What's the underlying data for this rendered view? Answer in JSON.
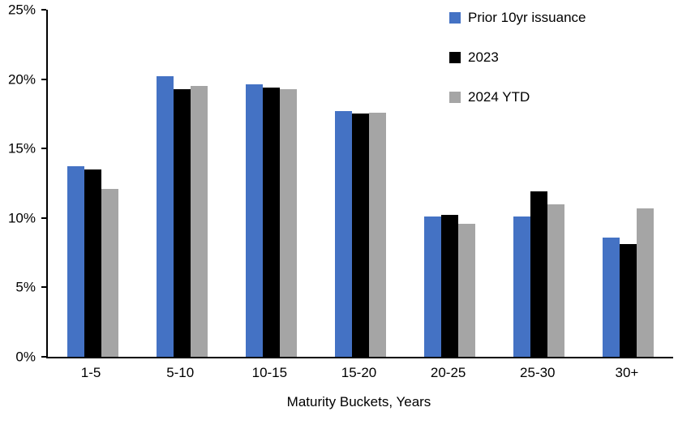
{
  "chart_data": {
    "type": "bar",
    "title": "",
    "xlabel": "Maturity Buckets, Years",
    "ylabel": "",
    "ylim": [
      0,
      25
    ],
    "ytick_step": 5,
    "ytick_labels": [
      "0%",
      "5%",
      "10%",
      "15%",
      "20%",
      "25%"
    ],
    "grid": false,
    "legend_position": "top-right",
    "categories": [
      "1-5",
      "5-10",
      "10-15",
      "15-20",
      "20-25",
      "25-30",
      "30+"
    ],
    "series": [
      {
        "name": "Prior 10yr issuance",
        "color": "#4472C4",
        "values": [
          13.7,
          20.2,
          19.6,
          17.7,
          10.1,
          10.1,
          8.6
        ]
      },
      {
        "name": "2023",
        "color": "#000000",
        "values": [
          13.5,
          19.3,
          19.4,
          17.5,
          10.2,
          11.9,
          8.1
        ]
      },
      {
        "name": "2024 YTD",
        "color": "#A5A5A5",
        "values": [
          12.1,
          19.5,
          19.3,
          17.6,
          9.6,
          11.0,
          10.7
        ]
      }
    ],
    "colors": {
      "axis": "#000000",
      "background": "#FFFFFF"
    }
  }
}
